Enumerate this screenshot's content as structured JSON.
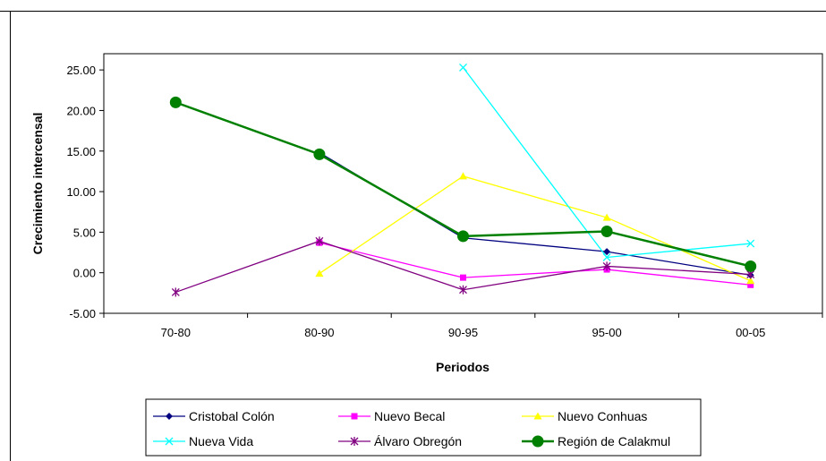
{
  "chart_data": {
    "type": "line",
    "title": "",
    "xlabel": "Periodos",
    "ylabel": "Crecimiento intercensal",
    "categories": [
      "70-80",
      "80-90",
      "90-95",
      "95-00",
      "00-05"
    ],
    "ylim": [
      -5,
      27
    ],
    "yticks": [
      "25.00",
      "20.00",
      "15.00",
      "10.00",
      "5.00",
      "0.00",
      "-5.00"
    ],
    "ytick_values": [
      25,
      20,
      15,
      10,
      5,
      0,
      -5
    ],
    "grid": false,
    "legend_position": "bottom",
    "series": [
      {
        "name": "Cristobal Colón",
        "values": [
          null,
          14.8,
          4.3,
          2.6,
          -0.3
        ],
        "color": "#000080",
        "marker": "diamond"
      },
      {
        "name": "Nuevo Becal",
        "values": [
          null,
          3.7,
          -0.6,
          0.4,
          -1.5
        ],
        "color": "#ff00ff",
        "marker": "square"
      },
      {
        "name": "Nuevo Conhuas",
        "values": [
          null,
          -0.1,
          11.9,
          6.8,
          -1.0
        ],
        "color": "#ffff00",
        "marker": "triangle"
      },
      {
        "name": "Nueva Vida",
        "values": [
          null,
          null,
          25.3,
          1.9,
          3.6
        ],
        "color": "#00ffff",
        "marker": "x"
      },
      {
        "name": "Álvaro Obregón",
        "values": [
          -2.4,
          3.9,
          -2.1,
          0.8,
          -0.2
        ],
        "color": "#800080",
        "marker": "star"
      },
      {
        "name": "Región de Calakmul",
        "values": [
          21.0,
          14.6,
          4.5,
          5.1,
          0.8
        ],
        "color": "#008000",
        "marker": "circle"
      }
    ]
  }
}
